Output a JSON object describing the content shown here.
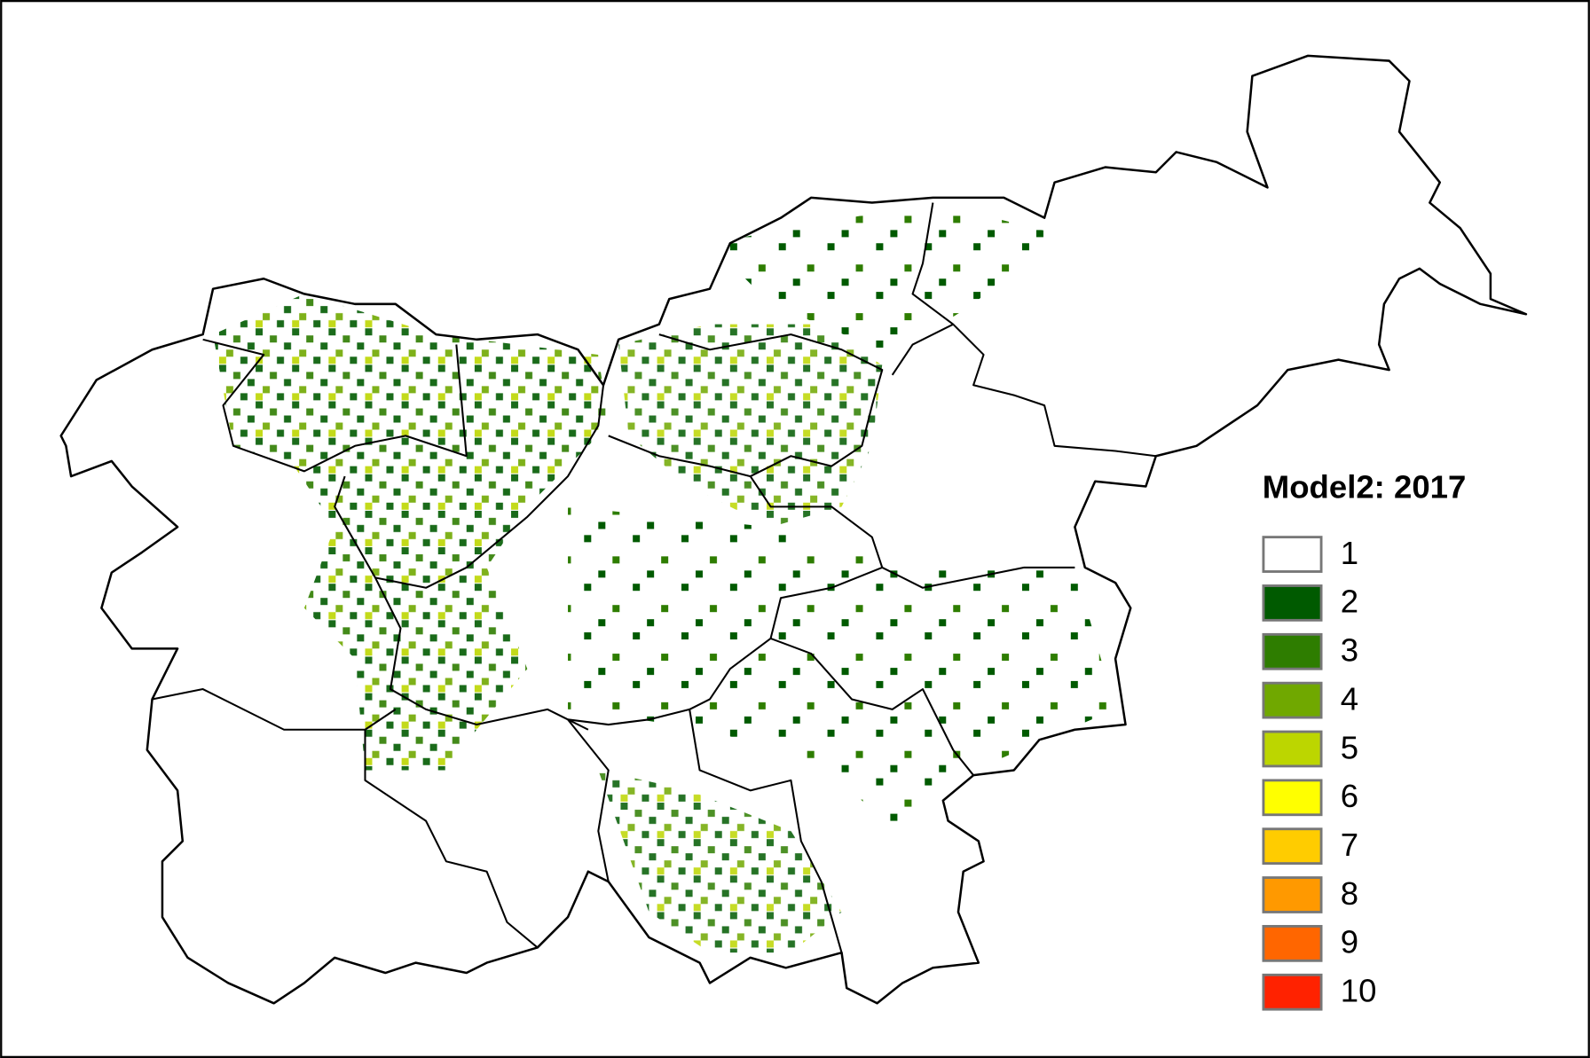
{
  "legend": {
    "title": "Model2: 2017",
    "items": [
      {
        "label": "1",
        "color": "#ffffff"
      },
      {
        "label": "2",
        "color": "#005a00"
      },
      {
        "label": "3",
        "color": "#2e7d00"
      },
      {
        "label": "4",
        "color": "#70a800"
      },
      {
        "label": "5",
        "color": "#bcd600"
      },
      {
        "label": "6",
        "color": "#ffff00"
      },
      {
        "label": "7",
        "color": "#ffcc00"
      },
      {
        "label": "8",
        "color": "#ff9900"
      },
      {
        "label": "9",
        "color": "#ff6600"
      },
      {
        "label": "10",
        "color": "#ff2200"
      }
    ]
  }
}
